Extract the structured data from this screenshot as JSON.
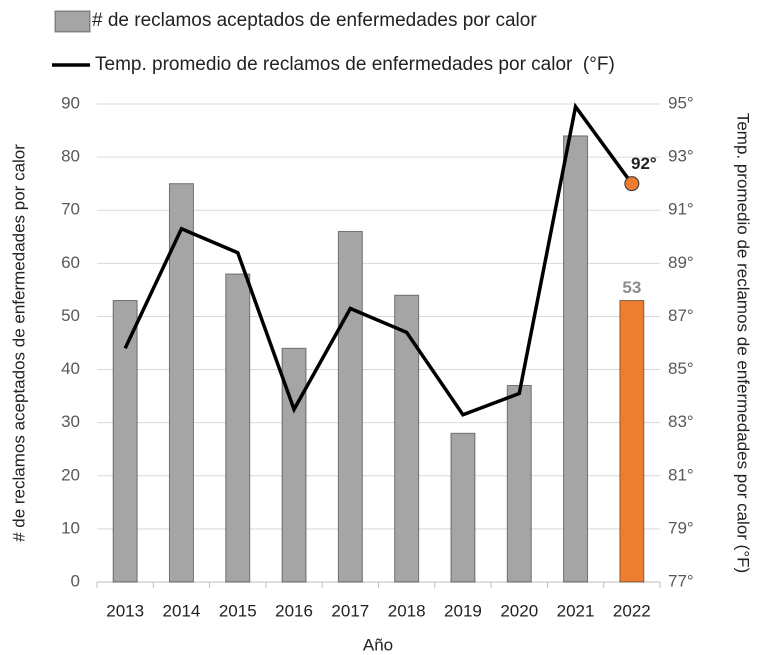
{
  "chart_data": {
    "type": "bar",
    "x_label": "Año",
    "y_label": "# de reclamos aceptados de enfermedades por calor",
    "y2_label": "Temp. promedio de reclamos de enfermedades por calor (°F)",
    "categories": [
      "2013",
      "2014",
      "2015",
      "2016",
      "2017",
      "2018",
      "2019",
      "2020",
      "2021",
      "2022"
    ],
    "series": [
      {
        "name": "# de reclamos aceptados de enfermedades por calor",
        "type": "bar",
        "color": "#a5a5a5",
        "colors": [
          "#a5a5a5",
          "#a5a5a5",
          "#a5a5a5",
          "#a5a5a5",
          "#a5a5a5",
          "#a5a5a5",
          "#a5a5a5",
          "#a5a5a5",
          "#a5a5a5",
          "#ed7d31"
        ],
        "values": [
          53,
          75,
          58,
          44,
          66,
          54,
          28,
          37,
          84,
          53
        ],
        "value_labels": [
          null,
          null,
          null,
          null,
          null,
          null,
          null,
          null,
          null,
          "53"
        ]
      },
      {
        "name": "Temp. promedio de reclamos de enfermedades por calor  (°F)",
        "type": "line",
        "axis": "y2",
        "color": "#000000",
        "values": [
          85.8,
          90.3,
          89.4,
          83.5,
          87.3,
          86.4,
          83.3,
          84.1,
          94.9,
          92.0
        ],
        "value_labels": [
          null,
          null,
          null,
          null,
          null,
          null,
          null,
          null,
          null,
          "92°"
        ]
      }
    ],
    "ylim": [
      0,
      90
    ],
    "yticks": [
      0,
      10,
      20,
      30,
      40,
      50,
      60,
      70,
      80,
      90
    ],
    "y2lim": [
      77,
      95
    ],
    "y2ticks": [
      {
        "value": 77,
        "label": "77°"
      },
      {
        "value": 79,
        "label": "79°"
      },
      {
        "value": 81,
        "label": "81°"
      },
      {
        "value": 83,
        "label": "83°"
      },
      {
        "value": 85,
        "label": "85°"
      },
      {
        "value": 87,
        "label": "87°"
      },
      {
        "value": 89,
        "label": "89°"
      },
      {
        "value": 91,
        "label": "91°"
      },
      {
        "value": 93,
        "label": "93°"
      },
      {
        "value": 95,
        "label": "95°"
      }
    ],
    "grid": true,
    "legend": "top"
  }
}
